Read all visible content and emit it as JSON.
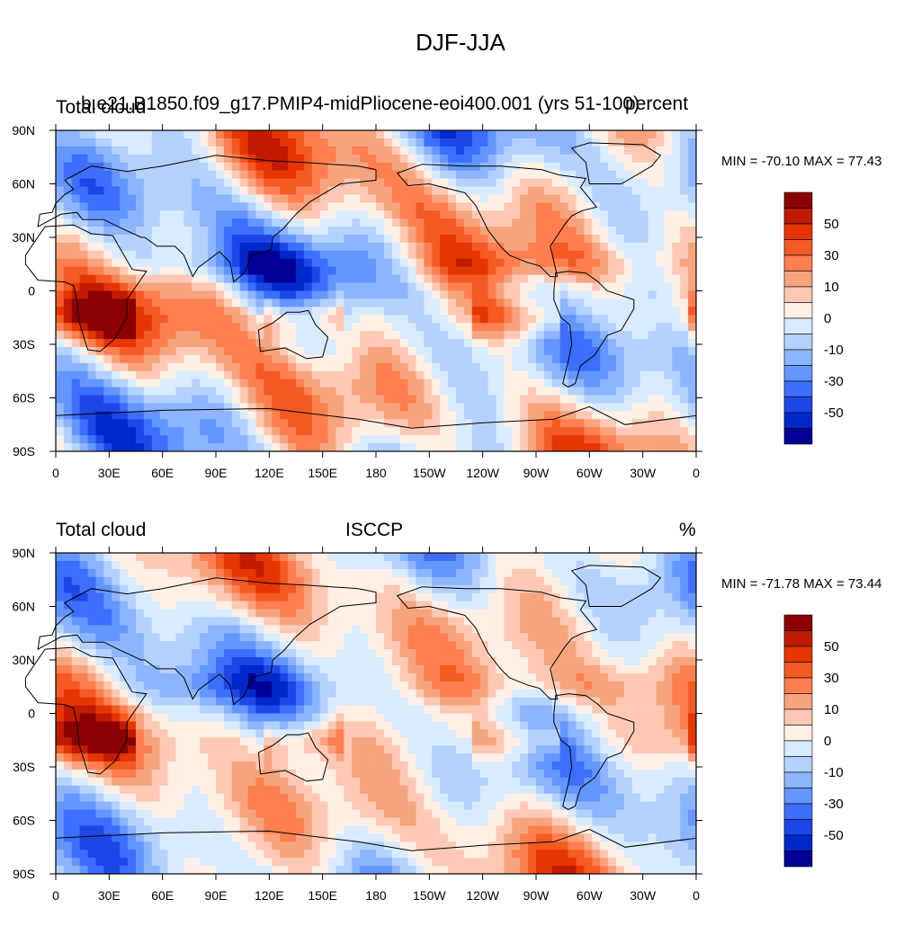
{
  "title": "DJF-JJA",
  "colorbar": {
    "colors": [
      "#8b0000",
      "#c01b00",
      "#e63500",
      "#f35a24",
      "#ff7f50",
      "#f6a47e",
      "#ffc8b4",
      "#fff0e6",
      "#d8ebff",
      "#b4d2ff",
      "#8cb4ff",
      "#6496ff",
      "#3c6eff",
      "#1e46e6",
      "#0028c8",
      "#000096"
    ],
    "labels": [
      "50",
      "30",
      "10",
      "0",
      "-10",
      "-30",
      "-50"
    ]
  },
  "axis": {
    "lat_labels": [
      "90N",
      "60N",
      "30N",
      "0",
      "30S",
      "60S",
      "90S"
    ],
    "lon_labels": [
      "0",
      "30E",
      "60E",
      "90E",
      "120E",
      "150E",
      "180",
      "150W",
      "120W",
      "90W",
      "60W",
      "30W",
      "0"
    ]
  },
  "panels": [
    {
      "left_title": "Total cloud",
      "center_title": "b.e21.B1850.f09_g17.PMIP4-midPliocene-eoi400.001 (yrs 51-100)",
      "right_title": "percent",
      "min_max": "MIN = -70.10 MAX =  77.43"
    },
    {
      "left_title": "Total cloud",
      "center_title": "ISCCP",
      "right_title": "%",
      "min_max": "MIN = -71.78 MAX =  73.44"
    }
  ]
}
